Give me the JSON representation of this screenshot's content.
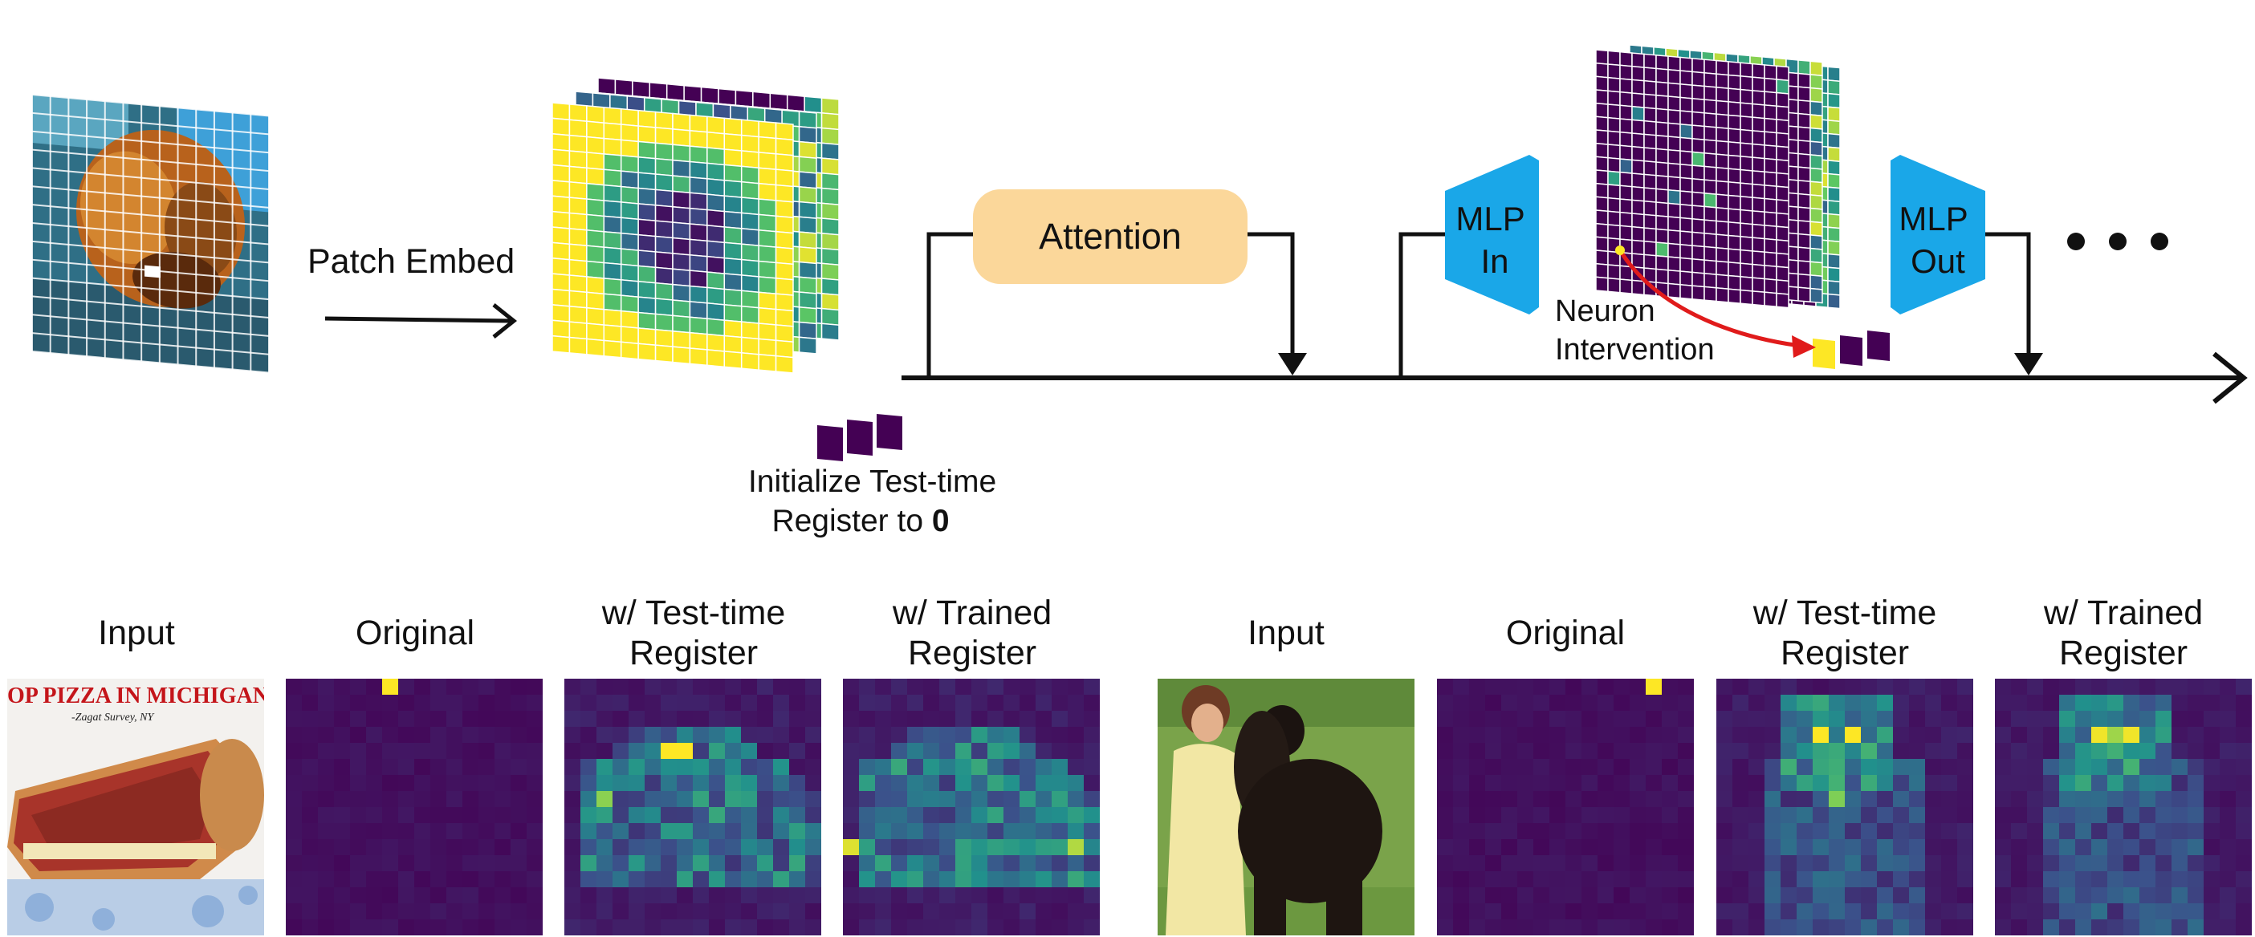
{
  "pipeline": {
    "patch_embed_label": "Patch Embed",
    "attention_label": "Attention",
    "mlp_in_label": [
      "MLP",
      "In"
    ],
    "mlp_out_label": [
      "MLP",
      "Out"
    ],
    "neuron_intervention_label": [
      "Neuron",
      "Intervention"
    ],
    "init_register_label": [
      "Initialize Test-time",
      "Register to ",
      "0"
    ],
    "ellipsis": "● ● ●"
  },
  "colors": {
    "attention_box": "#fbd79a",
    "mlp_box": "#1aa7e8",
    "intervention_arrow": "#e01b1b",
    "viridis_dark": "#440154",
    "viridis_yellow": "#fde725"
  },
  "panels": {
    "left": {
      "input": "Input",
      "original": "Original",
      "test_time": [
        "w/ Test-time",
        "Register"
      ],
      "trained": [
        "w/ Trained",
        "Register"
      ],
      "photo_caption": [
        "OP PIZZA IN MICHIGAN\"",
        "-Zagat Survey, NY"
      ]
    },
    "right": {
      "input": "Input",
      "original": "Original",
      "test_time": [
        "w/ Test-time",
        "Register"
      ],
      "trained": [
        "w/ Trained",
        "Register"
      ]
    }
  }
}
